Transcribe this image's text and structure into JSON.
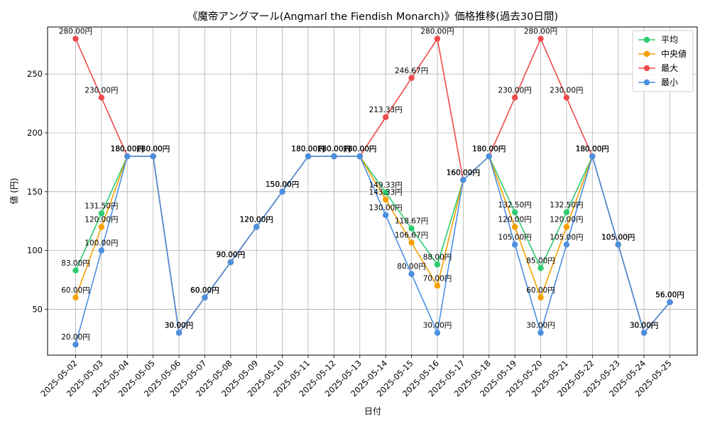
{
  "chart_data": {
    "type": "line",
    "title": "《魔帝アングマール(Angmarl the Fiendish Monarch)》価格推移(過去30日間)",
    "xlabel": "日付",
    "ylabel": "値 (円)",
    "ylim": [
      11,
      290
    ],
    "yticks": [
      50,
      100,
      150,
      200,
      250
    ],
    "grid": true,
    "legend_position": "top-right",
    "label_suffix": "円",
    "categories": [
      "2025-05-02",
      "2025-05-03",
      "2025-05-04",
      "2025-05-05",
      "2025-05-06",
      "2025-05-07",
      "2025-05-08",
      "2025-05-09",
      "2025-05-10",
      "2025-05-11",
      "2025-05-12",
      "2025-05-13",
      "2025-05-14",
      "2025-05-15",
      "2025-05-16",
      "2025-05-17",
      "2025-05-18",
      "2025-05-19",
      "2025-05-20",
      "2025-05-21",
      "2025-05-22",
      "2025-05-23",
      "2025-05-24",
      "2025-05-25"
    ],
    "series": [
      {
        "name": "平均",
        "color": "#2ecc71",
        "values": [
          83,
          131.5,
          180,
          180,
          30,
          60,
          90,
          120,
          150,
          180,
          180,
          180,
          149.33,
          118.67,
          88,
          160,
          180,
          132.5,
          85,
          132.5,
          180,
          105,
          30,
          56
        ]
      },
      {
        "name": "中央値",
        "color": "#f5a000",
        "values": [
          60,
          120,
          180,
          180,
          30,
          60,
          90,
          120,
          150,
          180,
          180,
          180,
          143.33,
          106.67,
          70,
          160,
          180,
          120,
          60,
          120,
          180,
          105,
          30,
          56
        ]
      },
      {
        "name": "最大",
        "color": "#ef4b4b",
        "values": [
          280,
          230,
          180,
          180,
          30,
          60,
          90,
          120,
          150,
          180,
          180,
          180,
          213.33,
          246.67,
          280,
          160,
          180,
          230,
          280,
          230,
          180,
          105,
          30,
          56
        ]
      },
      {
        "name": "最小",
        "color": "#4a90e2",
        "values": [
          20,
          100,
          180,
          180,
          30,
          60,
          90,
          120,
          150,
          180,
          180,
          180,
          130,
          80,
          30,
          160,
          180,
          105,
          30,
          105,
          180,
          105,
          30,
          56
        ]
      }
    ]
  }
}
